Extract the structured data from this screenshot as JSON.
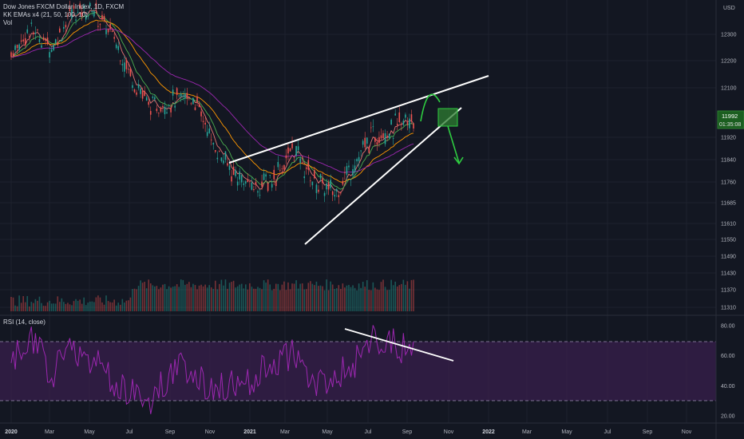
{
  "header": {
    "title": "Dow Jones FXCM Dollar Index, 1D, FXCM",
    "indicator": "KK EMAs x4 (21, 50, 100, 10)",
    "volume": "Vol",
    "currency": "USD"
  },
  "price_tag": {
    "value": "11992",
    "countdown": "01:35:08"
  },
  "rsi": {
    "label": "RSI (14, close)"
  },
  "colors": {
    "background": "#131722",
    "up": "#26a69a",
    "down": "#ef5350",
    "ema21": "#4caf50",
    "ema50": "#ff9800",
    "ema100": "#9c27b0",
    "ema10": "#e57373",
    "rsi_line": "#9c27b0",
    "rsi_band": "#3b1f4f",
    "annotation": "#ffffff",
    "projection": "#2ecc40"
  },
  "chart_data": [
    {
      "type": "line",
      "title": "Dow Jones FXCM Dollar Index, 1D, FXCM",
      "price_axis_ticks": [
        12300,
        12200,
        12100,
        11992,
        11920,
        11840,
        11760,
        11685,
        11610,
        11550,
        11490,
        11430,
        11370,
        11310
      ],
      "x_tick_labels": [
        "2020",
        "Mar",
        "May",
        "Jul",
        "Sep",
        "Nov",
        "2021",
        "Mar",
        "May",
        "Jul",
        "Sep",
        "Nov",
        "2022",
        "Mar",
        "May",
        "Jul",
        "Sep",
        "Nov"
      ],
      "series": [
        {
          "name": "close",
          "x": [
            "2020-01",
            "2020-02",
            "2020-03",
            "2020-04",
            "2020-05",
            "2020-06",
            "2020-07",
            "2020-08",
            "2020-09",
            "2020-10",
            "2020-11",
            "2020-12",
            "2021-01",
            "2021-02",
            "2021-03",
            "2021-04",
            "2021-05",
            "2021-06",
            "2021-07",
            "2021-08",
            "2021-09"
          ],
          "values": [
            12230,
            12320,
            12250,
            12380,
            12400,
            12300,
            12140,
            12020,
            12050,
            12070,
            11900,
            11790,
            11740,
            11770,
            11880,
            11770,
            11720,
            11820,
            11930,
            11950,
            11992
          ]
        }
      ],
      "annotations": [
        "rising-wedge-upper-trendline",
        "rising-wedge-lower-trendline",
        "projected-bounce-arrow",
        "projected-breakdown-arrow",
        "breakdown-marker-box"
      ]
    },
    {
      "type": "line",
      "title": "RSI (14, close)",
      "ylim": [
        20,
        80
      ],
      "y_ticks": [
        80,
        60,
        40,
        20
      ],
      "bands": [
        70,
        30
      ],
      "series": [
        {
          "name": "RSI (14, close)",
          "x": [
            "2020-01",
            "2020-02",
            "2020-03",
            "2020-04",
            "2020-05",
            "2020-06",
            "2020-07",
            "2020-08",
            "2020-09",
            "2020-10",
            "2020-11",
            "2020-12",
            "2021-01",
            "2021-02",
            "2021-03",
            "2021-04",
            "2021-05",
            "2021-06",
            "2021-07",
            "2021-08",
            "2021-09"
          ],
          "values": [
            55,
            72,
            48,
            66,
            58,
            44,
            35,
            30,
            52,
            50,
            38,
            40,
            45,
            55,
            62,
            40,
            45,
            55,
            70,
            68,
            63
          ]
        }
      ],
      "annotations": [
        "rsi-divergence-line"
      ]
    }
  ]
}
